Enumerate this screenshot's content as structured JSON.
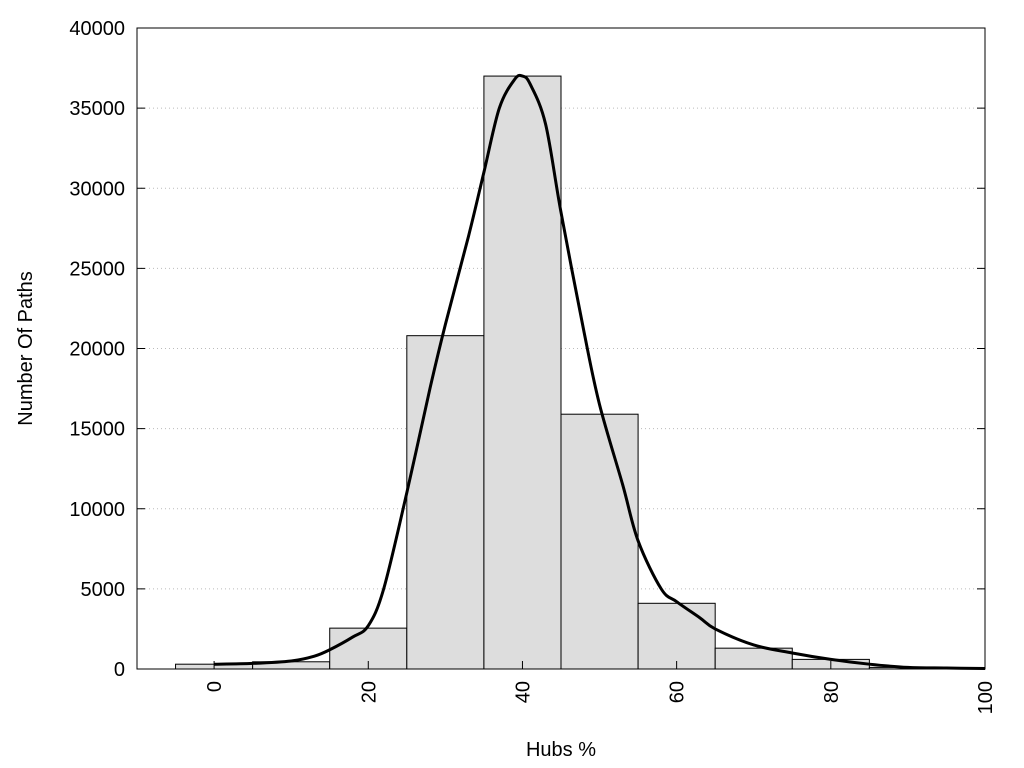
{
  "chart_data": {
    "type": "bar",
    "title": "",
    "xlabel": "Hubs %",
    "ylabel": "Number Of Paths",
    "xlim": [
      -10,
      100
    ],
    "ylim": [
      0,
      40000
    ],
    "xticks": [
      "0",
      "20",
      "40",
      "60",
      "80",
      "100"
    ],
    "yticks": [
      "0",
      "5000",
      "10000",
      "15000",
      "20000",
      "25000",
      "30000",
      "35000",
      "40000"
    ],
    "bar_width": 10,
    "bar_centers": [
      0,
      10,
      20,
      30,
      40,
      50,
      60,
      70,
      80,
      90
    ],
    "values": [
      300,
      450,
      2550,
      20800,
      37000,
      15900,
      4100,
      1300,
      600,
      100
    ],
    "curve": {
      "x": [
        0,
        5,
        10,
        13,
        15,
        18,
        20,
        22,
        25,
        28,
        30,
        33,
        35,
        37,
        39,
        40,
        41,
        43,
        45,
        48,
        50,
        53,
        55,
        58,
        60,
        63,
        65,
        70,
        75,
        80,
        85,
        90,
        95,
        100
      ],
      "y": [
        300,
        350,
        500,
        800,
        1200,
        2000,
        2700,
        5000,
        11000,
        17500,
        21500,
        27000,
        31000,
        35000,
        36800,
        37000,
        36500,
        34000,
        28500,
        21000,
        16500,
        11500,
        8000,
        5000,
        4200,
        3200,
        2500,
        1500,
        1000,
        600,
        300,
        100,
        60,
        30
      ]
    },
    "bar_color": "#dddddd",
    "grid": "horizontal dotted",
    "legend": "none"
  }
}
